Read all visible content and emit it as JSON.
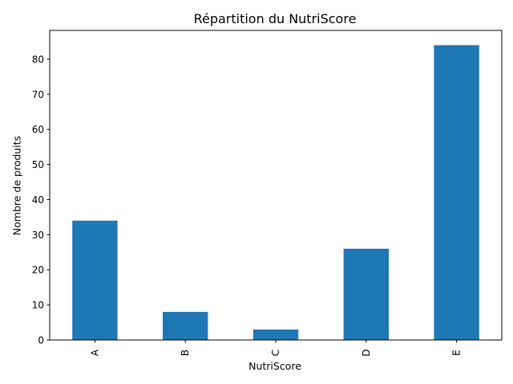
{
  "chart_data": {
    "type": "bar",
    "title": "Répartition du NutriScore",
    "xlabel": "NutriScore",
    "ylabel": "Nombre de produits",
    "categories": [
      "A",
      "B",
      "C",
      "D",
      "E"
    ],
    "values": [
      34,
      8,
      3,
      26,
      84
    ],
    "ylim": [
      0,
      88.2
    ],
    "yticks": [
      0,
      10,
      20,
      30,
      40,
      50,
      60,
      70,
      80
    ],
    "grid": false,
    "legend": "none",
    "bar_color": "#1f77b4",
    "tick_label_rotation": "vertical"
  }
}
